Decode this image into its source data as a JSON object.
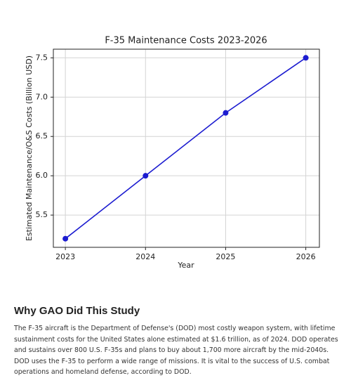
{
  "chart_data": {
    "type": "line",
    "title": "F-35 Maintenance Costs 2023-2026",
    "x_label": "Year",
    "y_label": "Estimated Maintenance/O&S Costs (Billion USD)",
    "x": [
      2023,
      2024,
      2025,
      2026
    ],
    "values": [
      5.2,
      6.0,
      6.8,
      7.5
    ],
    "color": "#1c1cd0",
    "xlim": [
      2022.85,
      2026.17
    ],
    "xticks": [
      2023,
      2024,
      2025,
      2026
    ],
    "ylim": [
      5.09,
      7.61
    ],
    "yticks": [
      5.5,
      {
        "value": 6,
        "label": "6.0"
      },
      6.5,
      {
        "value": 7,
        "label": "7.0"
      },
      7.5
    ],
    "grid": true
  },
  "section": {
    "heading": "Why GAO Did This Study",
    "paragraph": "The F-35 aircraft is the Department of Defense's (DOD) most costly weapon system, with lifetime sustainment costs for the United States alone estimated at $1.6 trillion, as of 2024. DOD operates and sustains over 800 U.S. F-35s and plans to buy about 1,700 more aircraft by the mid-2040s. DOD uses the F-35 to perform a wide range of missions. It is vital to the success of U.S. combat operations and homeland defense, according to DOD."
  }
}
